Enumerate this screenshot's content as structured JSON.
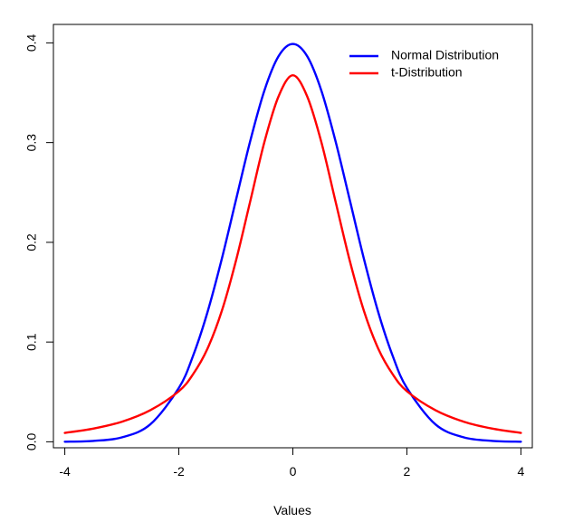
{
  "chart_data": {
    "type": "line",
    "title": "",
    "xlabel": "Values",
    "ylabel": "",
    "xlim": [
      -4.2,
      4.2
    ],
    "ylim": [
      -0.006,
      0.4185
    ],
    "xticks": [
      -4,
      -2,
      0,
      2,
      4
    ],
    "xtick_labels": [
      "-4",
      "-2",
      "0",
      "2",
      "4"
    ],
    "yticks": [
      0.0,
      0.1,
      0.2,
      0.3,
      0.4
    ],
    "ytick_labels": [
      "0.0",
      "0.1",
      "0.2",
      "0.3",
      "0.4"
    ],
    "grid": false,
    "legend_position": "top-right",
    "x": [
      -4,
      -3.5,
      -3,
      -2.5,
      -2,
      -1.75,
      -1.5,
      -1.25,
      -1,
      -0.75,
      -0.5,
      -0.25,
      0,
      0.25,
      0.5,
      0.75,
      1,
      1.25,
      1.5,
      1.75,
      2,
      2.5,
      3,
      3.5,
      4
    ],
    "series": [
      {
        "name": "Normal Distribution",
        "color": "#0000ff",
        "values": [
          0.0001,
          0.0009,
          0.0044,
          0.0175,
          0.054,
          0.0863,
          0.1295,
          0.1826,
          0.242,
          0.3011,
          0.3521,
          0.3867,
          0.3989,
          0.3867,
          0.3521,
          0.3011,
          0.242,
          0.1826,
          0.1295,
          0.0863,
          0.054,
          0.0175,
          0.0044,
          0.0009,
          0.0001
        ]
      },
      {
        "name": "t-Distribution",
        "color": "#ff0000",
        "values": [
          0.0089,
          0.0132,
          0.0201,
          0.0317,
          0.0507,
          0.0678,
          0.0931,
          0.1306,
          0.1811,
          0.2406,
          0.3004,
          0.3465,
          0.3675,
          0.3465,
          0.3004,
          0.2406,
          0.1811,
          0.1306,
          0.0931,
          0.0678,
          0.0507,
          0.0317,
          0.0201,
          0.0132,
          0.0089
        ]
      }
    ]
  }
}
